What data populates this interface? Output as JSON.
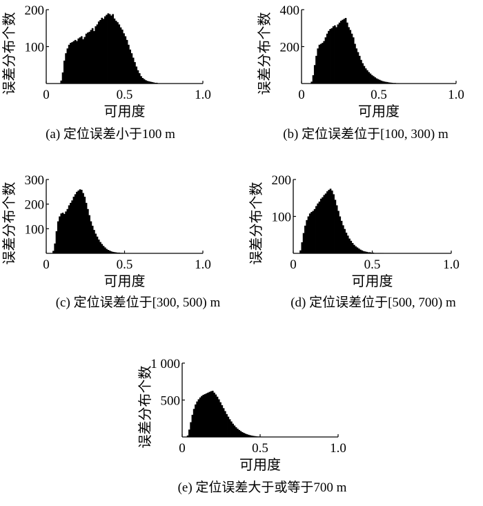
{
  "chart_data": [
    {
      "type": "bar",
      "caption": "(a) 定位误差小于100 m",
      "xlabel": "可用度",
      "ylabel": "误差分布个数",
      "xlim": [
        0,
        1.0
      ],
      "ylim": [
        0,
        200
      ],
      "x_ticks": [
        "0",
        "0.5",
        "1.0"
      ],
      "y_ticks": [
        "100",
        "200"
      ],
      "bin_width": 0.01,
      "x": [
        0.09,
        0.1,
        0.11,
        0.12,
        0.13,
        0.14,
        0.15,
        0.16,
        0.17,
        0.18,
        0.19,
        0.2,
        0.21,
        0.22,
        0.23,
        0.24,
        0.25,
        0.26,
        0.27,
        0.28,
        0.29,
        0.3,
        0.31,
        0.32,
        0.33,
        0.34,
        0.35,
        0.36,
        0.37,
        0.38,
        0.39,
        0.4,
        0.41,
        0.42,
        0.43,
        0.44,
        0.45,
        0.46,
        0.47,
        0.48,
        0.49,
        0.5,
        0.51,
        0.52,
        0.53,
        0.54,
        0.55,
        0.56,
        0.57,
        0.58,
        0.59,
        0.6,
        0.61,
        0.62,
        0.63,
        0.64,
        0.65,
        0.66,
        0.67,
        0.68,
        0.69,
        0.7
      ],
      "values": [
        8,
        30,
        62,
        82,
        95,
        105,
        110,
        112,
        115,
        118,
        115,
        122,
        125,
        128,
        120,
        126,
        135,
        138,
        140,
        145,
        150,
        142,
        155,
        160,
        168,
        172,
        178,
        175,
        182,
        186,
        190,
        188,
        184,
        188,
        176,
        170,
        166,
        160,
        152,
        146,
        136,
        128,
        118,
        105,
        92,
        82,
        70,
        58,
        46,
        36,
        28,
        20,
        15,
        12,
        9,
        7,
        6,
        5,
        4,
        3,
        2,
        2
      ]
    },
    {
      "type": "bar",
      "caption": "(b) 定位误差位于[100, 300) m",
      "xlabel": "可用度",
      "ylabel": "误差分布个数",
      "xlim": [
        0,
        1.0
      ],
      "ylim": [
        0,
        400
      ],
      "x_ticks": [
        "0",
        "0.5",
        "1.0"
      ],
      "y_ticks": [
        "200",
        "400"
      ],
      "bin_width": 0.01,
      "x": [
        0.06,
        0.07,
        0.08,
        0.09,
        0.1,
        0.11,
        0.12,
        0.13,
        0.14,
        0.15,
        0.16,
        0.17,
        0.18,
        0.19,
        0.2,
        0.21,
        0.22,
        0.23,
        0.24,
        0.25,
        0.26,
        0.27,
        0.28,
        0.29,
        0.3,
        0.31,
        0.32,
        0.33,
        0.34,
        0.35,
        0.36,
        0.37,
        0.38,
        0.39,
        0.4,
        0.41,
        0.42,
        0.43,
        0.44,
        0.45,
        0.46,
        0.47,
        0.48,
        0.49,
        0.5,
        0.51,
        0.52,
        0.53,
        0.54,
        0.55,
        0.56,
        0.57,
        0.58,
        0.59,
        0.6,
        0.61,
        0.62
      ],
      "values": [
        10,
        45,
        100,
        150,
        190,
        210,
        215,
        220,
        230,
        250,
        270,
        285,
        295,
        300,
        310,
        315,
        305,
        320,
        330,
        340,
        345,
        350,
        355,
        330,
        305,
        290,
        270,
        250,
        215,
        190,
        170,
        150,
        128,
        110,
        95,
        82,
        72,
        62,
        54,
        46,
        40,
        34,
        28,
        24,
        20,
        16,
        13,
        11,
        9,
        8,
        6,
        5,
        4,
        3,
        3,
        2,
        2
      ]
    },
    {
      "type": "bar",
      "caption": "(c) 定位误差位于[300, 500) m",
      "xlabel": "可用度",
      "ylabel": "误差分布个数",
      "xlim": [
        0,
        1.0
      ],
      "ylim": [
        0,
        300
      ],
      "x_ticks": [
        "0",
        "0.5",
        "1.0"
      ],
      "y_ticks": [
        "100",
        "200",
        "300"
      ],
      "bin_width": 0.01,
      "x": [
        0.04,
        0.05,
        0.06,
        0.07,
        0.08,
        0.09,
        0.1,
        0.11,
        0.12,
        0.13,
        0.14,
        0.15,
        0.16,
        0.17,
        0.18,
        0.19,
        0.2,
        0.21,
        0.22,
        0.23,
        0.24,
        0.25,
        0.26,
        0.27,
        0.28,
        0.29,
        0.3,
        0.31,
        0.32,
        0.33,
        0.34,
        0.35,
        0.36,
        0.37,
        0.38,
        0.39,
        0.4,
        0.41,
        0.42,
        0.43,
        0.44,
        0.45,
        0.46,
        0.47,
        0.48,
        0.49,
        0.5,
        0.51,
        0.52
      ],
      "values": [
        10,
        40,
        90,
        130,
        150,
        162,
        165,
        160,
        170,
        180,
        195,
        205,
        215,
        230,
        240,
        250,
        255,
        260,
        258,
        245,
        230,
        205,
        180,
        155,
        130,
        112,
        95,
        80,
        68,
        56,
        46,
        38,
        30,
        24,
        18,
        14,
        11,
        8,
        6,
        5,
        4,
        3,
        3,
        2,
        2,
        1,
        1,
        1,
        1
      ]
    },
    {
      "type": "bar",
      "caption": "(d) 定位误差位于[500, 700) m",
      "xlabel": "可用度",
      "ylabel": "误差分布个数",
      "xlim": [
        0,
        1.0
      ],
      "ylim": [
        0,
        200
      ],
      "x_ticks": [
        "0",
        "0.5",
        "1.0"
      ],
      "y_ticks": [
        "100",
        "200"
      ],
      "bin_width": 0.01,
      "x": [
        0.04,
        0.05,
        0.06,
        0.07,
        0.08,
        0.09,
        0.1,
        0.11,
        0.12,
        0.13,
        0.14,
        0.15,
        0.16,
        0.17,
        0.18,
        0.19,
        0.2,
        0.21,
        0.22,
        0.23,
        0.24,
        0.25,
        0.26,
        0.27,
        0.28,
        0.29,
        0.3,
        0.31,
        0.32,
        0.33,
        0.34,
        0.35,
        0.36,
        0.37,
        0.38,
        0.39,
        0.4,
        0.41,
        0.42,
        0.43,
        0.44,
        0.45,
        0.46,
        0.47,
        0.48,
        0.49,
        0.5,
        0.51,
        0.52,
        0.53,
        0.54,
        0.55,
        0.56
      ],
      "values": [
        8,
        30,
        55,
        75,
        90,
        100,
        108,
        112,
        115,
        120,
        128,
        135,
        140,
        148,
        152,
        158,
        162,
        168,
        172,
        175,
        170,
        160,
        145,
        130,
        115,
        100,
        88,
        76,
        66,
        56,
        48,
        40,
        34,
        28,
        23,
        19,
        16,
        13,
        10,
        8,
        6,
        5,
        4,
        3,
        3,
        2,
        2,
        1,
        1,
        1,
        1,
        1,
        1
      ]
    },
    {
      "type": "bar",
      "caption": "(e) 定位误差大于或等于700 m",
      "xlabel": "可用度",
      "ylabel": "误差分布个数",
      "xlim": [
        0,
        1.0
      ],
      "ylim": [
        0,
        1000
      ],
      "x_ticks": [
        "0",
        "0.5",
        "1.0"
      ],
      "y_ticks": [
        "500",
        "1 000"
      ],
      "bin_width": 0.01,
      "x": [
        0.03,
        0.04,
        0.05,
        0.06,
        0.07,
        0.08,
        0.09,
        0.1,
        0.11,
        0.12,
        0.13,
        0.14,
        0.15,
        0.16,
        0.17,
        0.18,
        0.19,
        0.2,
        0.21,
        0.22,
        0.23,
        0.24,
        0.25,
        0.26,
        0.27,
        0.28,
        0.29,
        0.3,
        0.31,
        0.32,
        0.33,
        0.34,
        0.35,
        0.36,
        0.37,
        0.38,
        0.39,
        0.4,
        0.41,
        0.42,
        0.43,
        0.44,
        0.45,
        0.46,
        0.47,
        0.48,
        0.49,
        0.5,
        0.51,
        0.52,
        0.53,
        0.54,
        0.55,
        0.56,
        0.57,
        0.58,
        0.59,
        0.6
      ],
      "values": [
        20,
        100,
        200,
        300,
        380,
        440,
        480,
        510,
        535,
        555,
        570,
        580,
        590,
        600,
        610,
        620,
        625,
        600,
        575,
        545,
        510,
        470,
        430,
        390,
        350,
        310,
        275,
        240,
        210,
        180,
        155,
        132,
        112,
        95,
        80,
        66,
        55,
        45,
        37,
        30,
        24,
        19,
        15,
        12,
        9,
        7,
        6,
        5,
        4,
        3,
        3,
        2,
        2,
        2,
        1,
        1,
        1,
        1
      ]
    }
  ]
}
